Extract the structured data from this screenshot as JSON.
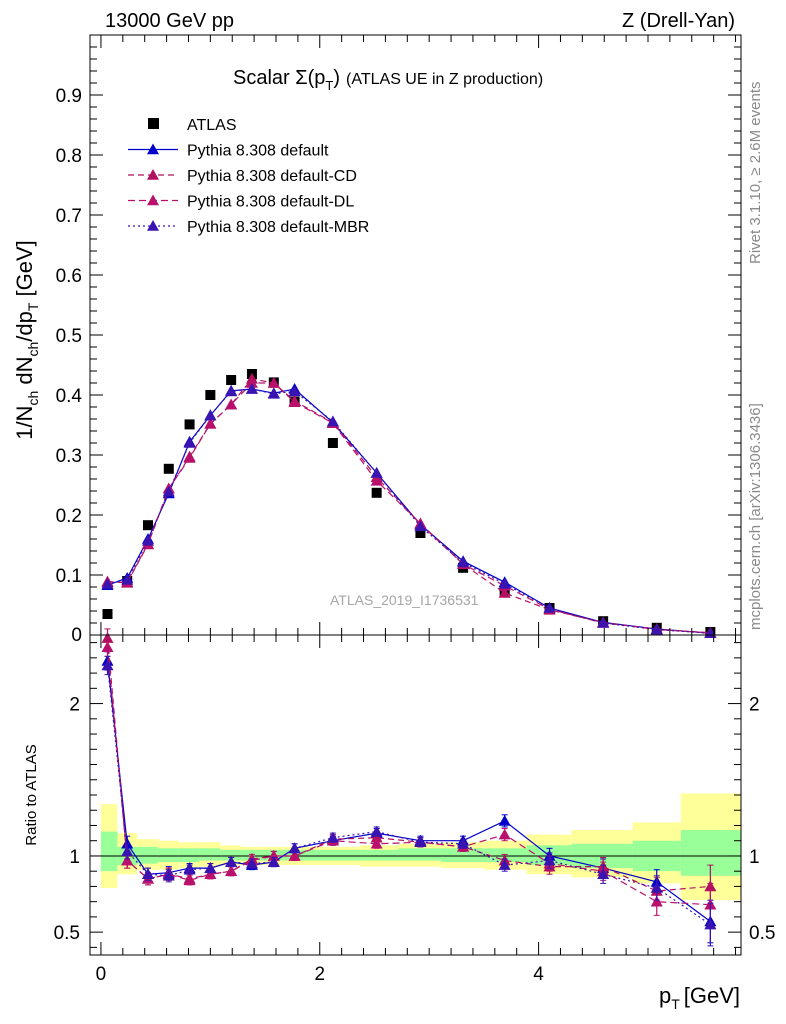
{
  "header": {
    "left": "13000 GeV pp",
    "right": "Z (Drell-Yan)"
  },
  "side_labels": {
    "rivet": "Rivet 3.1.10, ≥ 2.6M events",
    "mcplots": "mcplots.cern.ch [arXiv:1306.3436]"
  },
  "colors": {
    "atlas": "#000000",
    "default": "#0000cc",
    "cd": "#b0105e",
    "dl": "#b8106c",
    "mbr": "#3a14b0",
    "band_inner": "#99ff99",
    "band_outer": "#ffff99"
  },
  "chart_data": [
    {
      "id": "main",
      "type": "scatter",
      "title": "Scalar Σ(pT) (ATLAS UE in Z production)",
      "title_prefix": "Scalar ",
      "title_symbol": "Σ(p",
      "title_sub": "T",
      "title_close": ")",
      "title_suffix": "(ATLAS UE in Z production)",
      "ylabel": "1/N_ch dN_ch/dp_T [GeV]",
      "xlim": [
        -0.1,
        5.85
      ],
      "ylim": [
        0,
        1.0
      ],
      "yticks": [
        0.1,
        0.2,
        0.3,
        0.4,
        0.5,
        0.6,
        0.7,
        0.8,
        0.9
      ],
      "ytick_labels": [
        "0.1",
        "0.2",
        "0.3",
        "0.4",
        "0.5",
        "0.6",
        "0.7",
        "0.8",
        "0.9"
      ],
      "bottom_tick_label": "0",
      "watermark": "ATLAS_2019_I1736531",
      "legend": [
        {
          "label": "ATLAS",
          "key": "atlas"
        },
        {
          "label": "Pythia 8.308 default",
          "key": "default"
        },
        {
          "label": "Pythia 8.308 default-CD",
          "key": "cd"
        },
        {
          "label": "Pythia 8.308 default-DL",
          "key": "dl"
        },
        {
          "label": "Pythia 8.308 default-MBR",
          "key": "mbr"
        }
      ],
      "x": [
        0.06,
        0.24,
        0.43,
        0.62,
        0.81,
        1.0,
        1.19,
        1.38,
        1.58,
        1.77,
        2.12,
        2.52,
        2.92,
        3.31,
        3.69,
        4.1,
        4.59,
        5.08,
        5.57
      ],
      "series": [
        {
          "name": "ATLAS",
          "key": "atlas",
          "values": [
            0.035,
            0.09,
            0.183,
            0.277,
            0.351,
            0.4,
            0.425,
            0.435,
            0.421,
            0.389,
            0.32,
            0.237,
            0.17,
            0.112,
            0.072,
            0.045,
            0.023,
            0.012,
            0.005
          ]
        },
        {
          "name": "Pythia 8.308 default",
          "key": "default",
          "values": [
            0.083,
            0.095,
            0.16,
            0.236,
            0.322,
            0.366,
            0.407,
            0.41,
            0.403,
            0.41,
            0.354,
            0.27,
            0.184,
            0.123,
            0.088,
            0.045,
            0.021,
            0.01,
            0.003
          ]
        },
        {
          "name": "Pythia 8.308 default-CD",
          "key": "cd",
          "values": [
            0.089,
            0.087,
            0.151,
            0.244,
            0.297,
            0.352,
            0.384,
            0.427,
            0.42,
            0.39,
            0.354,
            0.263,
            0.185,
            0.118,
            0.07,
            0.042,
            0.021,
            0.009,
            0.004
          ]
        },
        {
          "name": "Pythia 8.308 default-DL",
          "key": "dl",
          "values": [
            0.088,
            0.088,
            0.152,
            0.244,
            0.295,
            0.352,
            0.384,
            0.42,
            0.42,
            0.388,
            0.353,
            0.257,
            0.186,
            0.118,
            0.082,
            0.043,
            0.02,
            0.01,
            0.003
          ]
        },
        {
          "name": "Pythia 8.308 default-MBR",
          "key": "mbr",
          "values": [
            0.085,
            0.092,
            0.157,
            0.239,
            0.32,
            0.366,
            0.406,
            0.41,
            0.402,
            0.406,
            0.356,
            0.27,
            0.181,
            0.121,
            0.085,
            0.045,
            0.02,
            0.009,
            0.003
          ]
        }
      ]
    },
    {
      "id": "ratio",
      "type": "line",
      "ylabel": "Ratio to ATLAS",
      "xlabel": "pT [GeV]",
      "xlabel_main": "p",
      "xlabel_sub": "T",
      "xlabel_unit": "[GeV]",
      "xlim": [
        -0.1,
        5.85
      ],
      "ylim": [
        0.35,
        2.45
      ],
      "yticks": [
        0.5,
        1,
        2
      ],
      "ytick_labels": [
        "0.5",
        "1",
        "2"
      ],
      "xticks": [
        0,
        2,
        4
      ],
      "xtick_labels": [
        "0",
        "2",
        "4"
      ],
      "band_edges": [
        0.0,
        0.15,
        0.33,
        0.52,
        0.71,
        0.9,
        1.09,
        1.28,
        1.48,
        1.67,
        1.87,
        2.37,
        2.72,
        3.11,
        3.5,
        3.89,
        4.3,
        4.86,
        5.3,
        5.85
      ],
      "band_inner": [
        [
          0.9,
          1.16
        ],
        [
          0.94,
          1.06
        ],
        [
          0.95,
          1.06
        ],
        [
          0.96,
          1.05
        ],
        [
          0.96,
          1.05
        ],
        [
          0.97,
          1.05
        ],
        [
          0.97,
          1.04
        ],
        [
          0.97,
          1.04
        ],
        [
          0.97,
          1.04
        ],
        [
          0.97,
          1.04
        ],
        [
          0.97,
          1.04
        ],
        [
          0.97,
          1.04
        ],
        [
          0.97,
          1.05
        ],
        [
          0.96,
          1.05
        ],
        [
          0.96,
          1.05
        ],
        [
          0.94,
          1.07
        ],
        [
          0.92,
          1.08
        ],
        [
          0.9,
          1.1
        ],
        [
          0.87,
          1.17
        ]
      ],
      "band_outer": [
        [
          0.79,
          1.34
        ],
        [
          0.88,
          1.15
        ],
        [
          0.91,
          1.11
        ],
        [
          0.91,
          1.1
        ],
        [
          0.92,
          1.09
        ],
        [
          0.93,
          1.09
        ],
        [
          0.94,
          1.07
        ],
        [
          0.94,
          1.06
        ],
        [
          0.94,
          1.06
        ],
        [
          0.94,
          1.06
        ],
        [
          0.94,
          1.06
        ],
        [
          0.93,
          1.07
        ],
        [
          0.93,
          1.08
        ],
        [
          0.92,
          1.09
        ],
        [
          0.91,
          1.1
        ],
        [
          0.88,
          1.14
        ],
        [
          0.86,
          1.17
        ],
        [
          0.82,
          1.22
        ],
        [
          0.71,
          1.41
        ]
      ],
      "series": [
        {
          "name": "Pythia 8.308 default",
          "key": "default",
          "values": [
            2.28,
            1.08,
            0.88,
            0.89,
            0.92,
            0.92,
            0.96,
            0.94,
            0.96,
            1.05,
            1.1,
            1.15,
            1.1,
            1.1,
            1.23,
            1.0,
            0.92,
            0.83,
            0.57
          ],
          "errors": [
            0.06,
            0.05,
            0.04,
            0.04,
            0.03,
            0.03,
            0.03,
            0.03,
            0.03,
            0.03,
            0.03,
            0.03,
            0.03,
            0.03,
            0.04,
            0.05,
            0.06,
            0.08,
            0.14
          ]
        },
        {
          "name": "Pythia 8.308 default-CD",
          "key": "cd",
          "values": [
            2.43,
            0.97,
            0.85,
            0.88,
            0.85,
            0.88,
            0.9,
            0.98,
            1.0,
            1.0,
            1.11,
            1.12,
            1.09,
            1.06,
            0.97,
            0.93,
            0.93,
            0.77,
            0.8
          ],
          "errors": [
            0.06,
            0.05,
            0.04,
            0.04,
            0.03,
            0.03,
            0.03,
            0.03,
            0.03,
            0.03,
            0.03,
            0.03,
            0.03,
            0.03,
            0.04,
            0.05,
            0.06,
            0.09,
            0.14
          ]
        },
        {
          "name": "Pythia 8.308 default-DL",
          "key": "dl",
          "values": [
            2.37,
            0.97,
            0.85,
            0.88,
            0.84,
            0.88,
            0.9,
            0.97,
            1.0,
            1.0,
            1.1,
            1.08,
            1.09,
            1.06,
            1.14,
            0.95,
            0.9,
            0.7,
            0.68
          ],
          "errors": [
            0.06,
            0.05,
            0.04,
            0.04,
            0.03,
            0.03,
            0.03,
            0.03,
            0.03,
            0.03,
            0.03,
            0.03,
            0.03,
            0.03,
            0.04,
            0.05,
            0.06,
            0.09,
            0.14
          ]
        },
        {
          "name": "Pythia 8.308 default-MBR",
          "key": "mbr",
          "values": [
            2.25,
            1.03,
            0.88,
            0.87,
            0.91,
            0.92,
            0.96,
            0.95,
            0.96,
            1.05,
            1.12,
            1.16,
            1.09,
            1.08,
            0.94,
            0.97,
            0.88,
            0.79,
            0.55
          ],
          "errors": [
            0.06,
            0.05,
            0.04,
            0.04,
            0.03,
            0.03,
            0.03,
            0.03,
            0.03,
            0.03,
            0.03,
            0.03,
            0.03,
            0.03,
            0.04,
            0.05,
            0.06,
            0.08,
            0.14
          ]
        }
      ]
    }
  ]
}
